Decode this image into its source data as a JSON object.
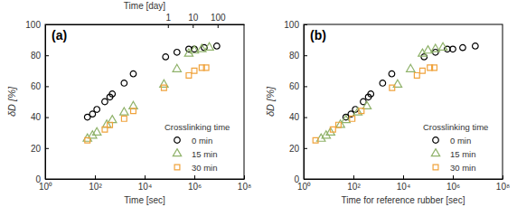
{
  "chart_data": [
    {
      "type": "scatter",
      "title": "(a)",
      "xlabel": "Time [sec]",
      "ylabel": "δD [%]",
      "x2label": "Time [day]",
      "log": "x",
      "legend": "lower right",
      "legend_title": "Crosslinking time",
      "grid": false,
      "xlim": [
        1,
        100000000
      ],
      "xticks": [
        {
          "value": 1,
          "label": "10⁰"
        },
        {
          "value": 100,
          "label": "10²"
        },
        {
          "value": 10000,
          "label": "10⁴"
        },
        {
          "value": 1000000,
          "label": "10⁶"
        },
        {
          "value": 100000000,
          "label": "10⁸"
        }
      ],
      "x2lim": [
        1.1574e-05,
        1157.4
      ],
      "x2ticks": [
        1,
        10,
        100
      ],
      "ylim": [
        0,
        100
      ],
      "yticks": [
        0,
        20,
        40,
        60,
        80,
        100
      ],
      "series": [
        {
          "name": "0 min",
          "color": "#000000",
          "marker": "circle",
          "x": [
            50,
            80,
            120,
            250,
            400,
            500,
            1500,
            3500,
            70000,
            200000,
            600000,
            1000000,
            2500000,
            8000000
          ],
          "values": [
            40,
            42,
            45,
            50,
            53,
            55,
            62,
            68,
            79,
            82,
            84,
            84,
            85,
            86
          ]
        },
        {
          "name": "15 min",
          "color": "#8fb26a",
          "marker": "triangle",
          "x": [
            50,
            80,
            120,
            300,
            500,
            1500,
            3500,
            60000,
            200000,
            600000,
            1000000,
            2000000,
            4000000
          ],
          "values": [
            26,
            28,
            30,
            35,
            38,
            43,
            47,
            61,
            71,
            81,
            83,
            84,
            85
          ]
        },
        {
          "name": "30 min",
          "color": "#f0a33c",
          "marker": "square",
          "x": [
            50,
            250,
            400,
            1500,
            3500,
            60000,
            600000,
            1000000,
            2000000,
            3000000
          ],
          "values": [
            25,
            32,
            35,
            39,
            44,
            59,
            67,
            70,
            72,
            72
          ]
        }
      ]
    },
    {
      "type": "scatter",
      "title": "(b)",
      "xlabel": "Time for reference rubber [sec]",
      "ylabel": "δD [%]",
      "log": "x",
      "legend": "lower right",
      "legend_title": "Crosslinking time",
      "grid": false,
      "xlim": [
        1,
        100000000
      ],
      "xticks": [
        {
          "value": 1,
          "label": "10⁰"
        },
        {
          "value": 100,
          "label": "10²"
        },
        {
          "value": 10000,
          "label": "10⁴"
        },
        {
          "value": 1000000,
          "label": "10⁶"
        },
        {
          "value": 100000000,
          "label": "10⁸"
        }
      ],
      "ylim": [
        0,
        100
      ],
      "yticks": [
        0,
        20,
        40,
        60,
        80,
        100
      ],
      "series": [
        {
          "name": "0 min",
          "color": "#000000",
          "marker": "circle",
          "x": [
            50,
            80,
            120,
            250,
            400,
            500,
            1500,
            3500,
            70000,
            200000,
            600000,
            1000000,
            2500000,
            8000000
          ],
          "values": [
            40,
            42,
            45,
            50,
            53,
            55,
            62,
            68,
            79,
            82,
            84,
            84,
            85,
            86
          ]
        },
        {
          "name": "15 min",
          "color": "#8fb26a",
          "marker": "triangle",
          "x": [
            5,
            8,
            12,
            30,
            50,
            150,
            350,
            6000,
            20000,
            60000,
            100000,
            200000,
            400000
          ],
          "values": [
            26,
            28,
            30,
            35,
            38,
            43,
            47,
            61,
            71,
            81,
            83,
            84,
            85
          ]
        },
        {
          "name": "30 min",
          "color": "#f0a33c",
          "marker": "square",
          "x": [
            3,
            15,
            25,
            90,
            210,
            3600,
            36000,
            60000,
            120000,
            180000
          ],
          "values": [
            25,
            32,
            35,
            39,
            44,
            59,
            67,
            70,
            72,
            72
          ]
        }
      ]
    }
  ]
}
